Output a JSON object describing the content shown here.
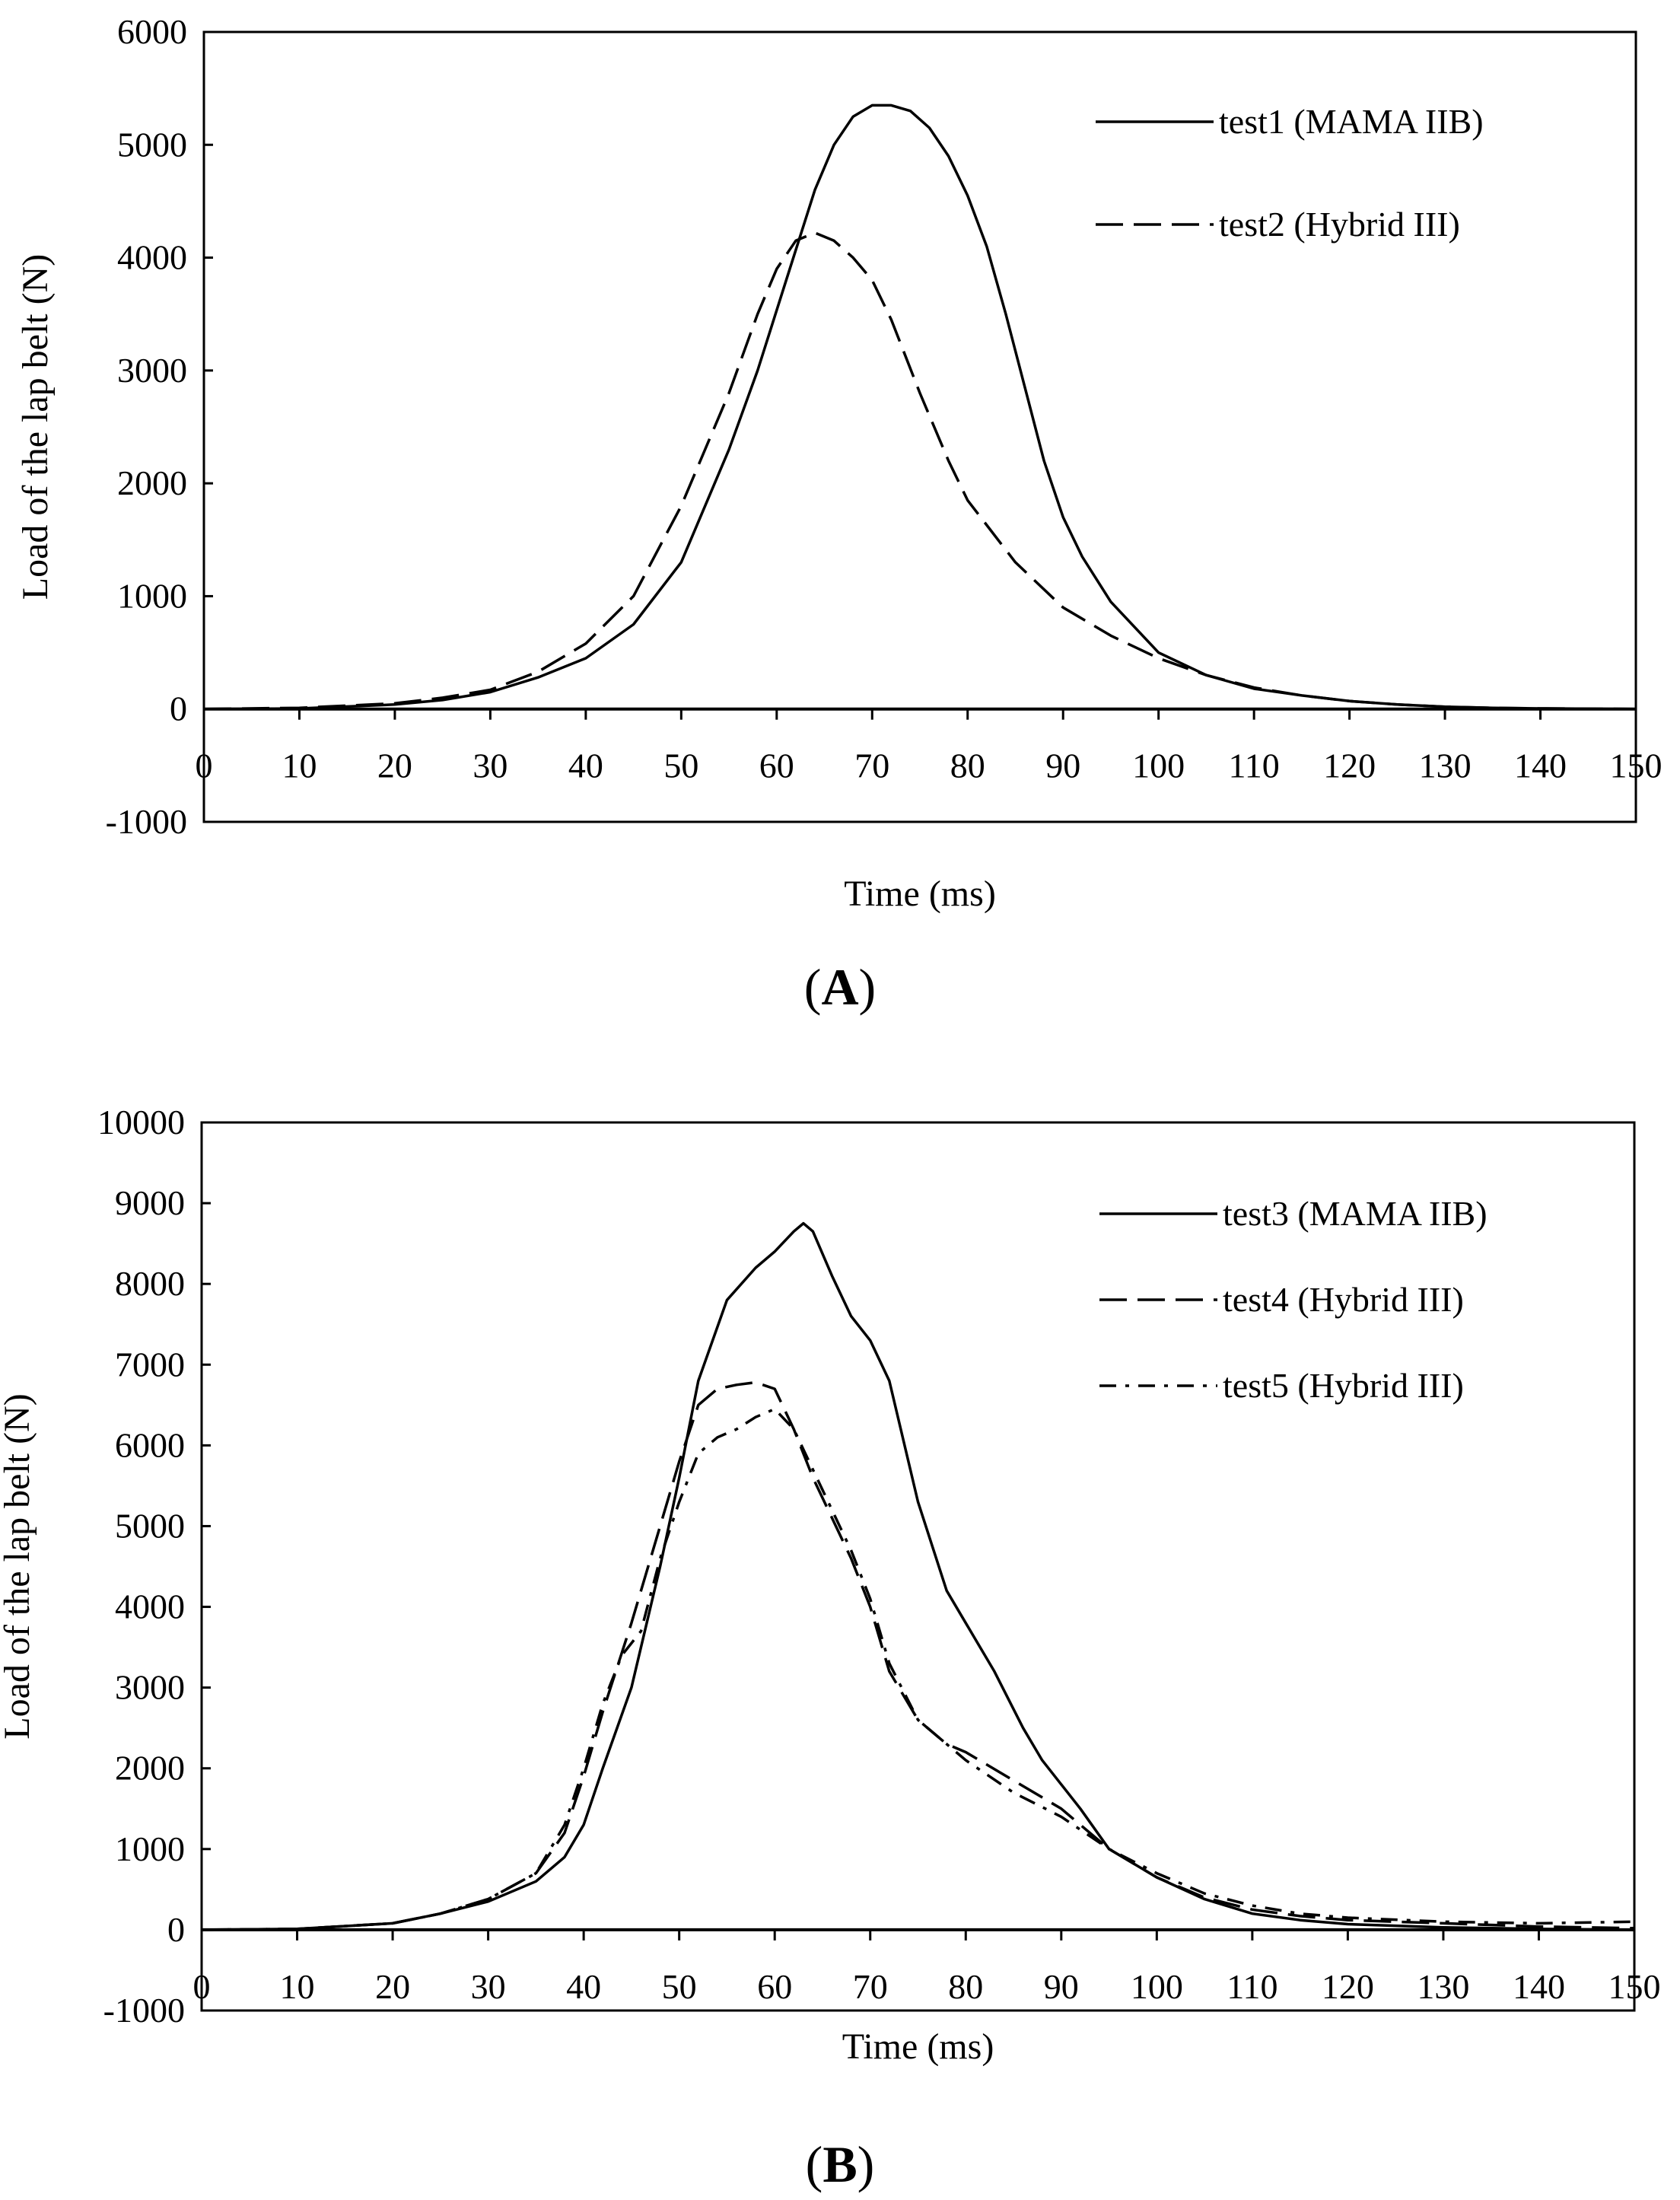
{
  "chart_data": [
    {
      "type": "line",
      "panel": "A",
      "xlabel": "Time (ms)",
      "ylabel": "Load of the lap belt (N)",
      "xlim": [
        0,
        150
      ],
      "ylim": [
        -1000,
        6000
      ],
      "xticks": [
        "0",
        "10",
        "20",
        "30",
        "40",
        "50",
        "60",
        "70",
        "80",
        "90",
        "100",
        "110",
        "120",
        "130",
        "140",
        "150"
      ],
      "yticks": [
        "-1000",
        "0",
        "1000",
        "2000",
        "3000",
        "4000",
        "5000",
        "6000"
      ],
      "legend": "top-right",
      "series": [
        {
          "name": "test1 (MAMA IIB)",
          "style": "solid",
          "x": [
            0,
            10,
            20,
            25,
            30,
            35,
            40,
            45,
            50,
            55,
            58,
            61,
            64,
            66,
            68,
            70,
            72,
            74,
            76,
            78,
            80,
            82,
            84,
            86,
            88,
            90,
            92,
            95,
            100,
            105,
            110,
            115,
            120,
            125,
            130,
            135,
            140,
            150
          ],
          "y": [
            0,
            5,
            40,
            80,
            150,
            280,
            450,
            750,
            1300,
            2300,
            3000,
            3800,
            4600,
            5000,
            5250,
            5350,
            5350,
            5300,
            5150,
            4900,
            4550,
            4100,
            3500,
            2850,
            2200,
            1700,
            1350,
            950,
            500,
            300,
            180,
            120,
            70,
            40,
            20,
            10,
            5,
            0
          ]
        },
        {
          "name": "test2 (Hybrid III)",
          "style": "dashed",
          "x": [
            0,
            10,
            20,
            25,
            30,
            35,
            40,
            45,
            50,
            55,
            58,
            60,
            62,
            64,
            66,
            68,
            70,
            72,
            75,
            78,
            80,
            85,
            90,
            95,
            100,
            105,
            110,
            115,
            120,
            125,
            130,
            135,
            140,
            150
          ],
          "y": [
            0,
            10,
            50,
            100,
            170,
            330,
            580,
            1000,
            1800,
            2800,
            3500,
            3900,
            4150,
            4220,
            4150,
            4000,
            3800,
            3450,
            2800,
            2200,
            1850,
            1300,
            900,
            650,
            450,
            300,
            190,
            120,
            70,
            40,
            20,
            10,
            5,
            0
          ]
        }
      ]
    },
    {
      "type": "line",
      "panel": "B",
      "xlabel": "Time (ms)",
      "ylabel": "Load of the lap belt (N)",
      "xlim": [
        0,
        150
      ],
      "ylim": [
        -1000,
        10000
      ],
      "xticks": [
        "0",
        "10",
        "20",
        "30",
        "40",
        "50",
        "60",
        "70",
        "80",
        "90",
        "100",
        "110",
        "120",
        "130",
        "140",
        "150"
      ],
      "yticks": [
        "-1000",
        "0",
        "1000",
        "2000",
        "3000",
        "4000",
        "5000",
        "6000",
        "7000",
        "8000",
        "9000",
        "10000"
      ],
      "legend": "top-right",
      "series": [
        {
          "name": "test3 (MAMA IIB)",
          "style": "solid",
          "x": [
            0,
            10,
            20,
            25,
            30,
            35,
            38,
            40,
            42,
            45,
            48,
            50,
            52,
            55,
            58,
            60,
            62,
            63,
            64,
            66,
            68,
            70,
            72,
            75,
            78,
            80,
            83,
            86,
            88,
            90,
            92,
            95,
            100,
            105,
            110,
            115,
            120,
            130,
            140,
            150
          ],
          "y": [
            0,
            10,
            80,
            200,
            350,
            600,
            900,
            1300,
            2000,
            3000,
            4500,
            5600,
            6800,
            7800,
            8200,
            8400,
            8650,
            8750,
            8650,
            8100,
            7600,
            7300,
            6800,
            5300,
            4200,
            3800,
            3200,
            2500,
            2100,
            1800,
            1500,
            1000,
            650,
            380,
            200,
            120,
            70,
            30,
            10,
            0
          ]
        },
        {
          "name": "test4 (Hybrid III)",
          "style": "dashed",
          "x": [
            0,
            10,
            20,
            25,
            30,
            35,
            38,
            40,
            42,
            45,
            48,
            50,
            52,
            54,
            56,
            58,
            60,
            62,
            64,
            66,
            68,
            70,
            72,
            75,
            78,
            80,
            85,
            90,
            95,
            100,
            105,
            110,
            115,
            120,
            130,
            140,
            150
          ],
          "y": [
            0,
            10,
            80,
            200,
            380,
            700,
            1200,
            1900,
            2700,
            3800,
            5000,
            5800,
            6500,
            6700,
            6750,
            6780,
            6700,
            6200,
            5600,
            5100,
            4600,
            4000,
            3200,
            2600,
            2300,
            2200,
            1850,
            1500,
            1000,
            650,
            400,
            250,
            170,
            120,
            80,
            40,
            20
          ]
        },
        {
          "name": "test5 (Hybrid III)",
          "style": "dashdot",
          "x": [
            0,
            10,
            20,
            25,
            30,
            35,
            38,
            40,
            42,
            44,
            46,
            48,
            50,
            52,
            54,
            56,
            58,
            60,
            62,
            64,
            66,
            68,
            70,
            72,
            75,
            78,
            80,
            85,
            90,
            95,
            100,
            105,
            110,
            115,
            120,
            130,
            140,
            150
          ],
          "y": [
            0,
            10,
            80,
            200,
            380,
            700,
            1300,
            2000,
            2800,
            3400,
            3700,
            4600,
            5300,
            5900,
            6100,
            6200,
            6350,
            6450,
            6200,
            5700,
            5200,
            4700,
            4100,
            3300,
            2600,
            2300,
            2100,
            1700,
            1400,
            1000,
            700,
            450,
            300,
            200,
            150,
            100,
            80,
            100
          ]
        }
      ]
    }
  ],
  "panel_labels": [
    "(A)",
    "(B)"
  ]
}
